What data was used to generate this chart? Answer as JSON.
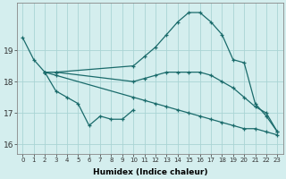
{
  "title": "",
  "xlabel": "Humidex (Indice chaleur)",
  "ylabel": "",
  "bg_color": "#d4eeee",
  "line_color": "#1a6b6b",
  "grid_color": "#aad4d4",
  "ylim": [
    15.7,
    20.5
  ],
  "xlim": [
    -0.5,
    23.5
  ],
  "yticks": [
    16,
    17,
    18,
    19
  ],
  "xticks": [
    0,
    1,
    2,
    3,
    4,
    5,
    6,
    7,
    8,
    9,
    10,
    11,
    12,
    13,
    14,
    15,
    16,
    17,
    18,
    19,
    20,
    21,
    22,
    23
  ],
  "series": [
    {
      "x": [
        0,
        1,
        2,
        3,
        10,
        11,
        12,
        13,
        14,
        15,
        16,
        17,
        18,
        19,
        20,
        21,
        22,
        23
      ],
      "y": [
        19.4,
        18.7,
        18.3,
        18.3,
        18.5,
        18.8,
        19.1,
        19.5,
        19.9,
        20.2,
        20.2,
        19.9,
        19.5,
        18.7,
        18.6,
        17.3,
        16.9,
        16.4
      ]
    },
    {
      "x": [
        2,
        3,
        10,
        11,
        12,
        13,
        14,
        15,
        16,
        17,
        18,
        19,
        20,
        21,
        22,
        23
      ],
      "y": [
        18.3,
        18.3,
        18.0,
        18.1,
        18.2,
        18.3,
        18.3,
        18.3,
        18.3,
        18.2,
        18.0,
        17.8,
        17.5,
        17.2,
        17.0,
        16.4
      ]
    },
    {
      "x": [
        2,
        3,
        4,
        5,
        6,
        7,
        8,
        9,
        10
      ],
      "y": [
        18.3,
        17.7,
        17.5,
        17.3,
        16.6,
        16.9,
        16.8,
        16.8,
        17.1
      ]
    },
    {
      "x": [
        2,
        3,
        10,
        11,
        12,
        13,
        14,
        15,
        16,
        17,
        18,
        19,
        20,
        21,
        22,
        23
      ],
      "y": [
        18.3,
        18.2,
        17.5,
        17.4,
        17.3,
        17.2,
        17.1,
        17.0,
        16.9,
        16.8,
        16.7,
        16.6,
        16.5,
        16.5,
        16.4,
        16.3
      ]
    }
  ]
}
